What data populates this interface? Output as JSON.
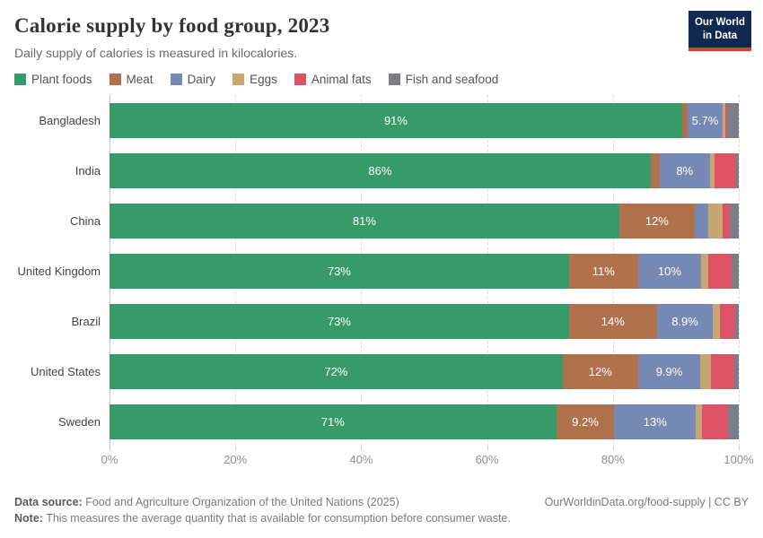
{
  "header": {
    "title": "Calorie supply by food group, 2023",
    "subtitle": "Daily supply of calories is measured in kilocalories."
  },
  "logo": {
    "line1": "Our World",
    "line2": "in Data",
    "bg_color": "#0F2A4E",
    "accent_color": "#DC3A32"
  },
  "chart_data": {
    "type": "bar",
    "stacked": true,
    "orientation": "horizontal",
    "grid": "vertical-dashed",
    "legend_position": "top",
    "xlim": [
      0,
      100
    ],
    "x_ticks": [
      "0%",
      "20%",
      "40%",
      "60%",
      "80%",
      "100%"
    ],
    "categories": [
      "Bangladesh",
      "India",
      "China",
      "United Kingdom",
      "Brazil",
      "United States",
      "Sweden"
    ],
    "series": [
      {
        "name": "Plant foods",
        "color": "#379A68",
        "values": [
          91,
          86,
          81,
          73,
          73,
          72,
          71
        ],
        "labels": [
          "91%",
          "86%",
          "81%",
          "73%",
          "73%",
          "72%",
          "71%"
        ]
      },
      {
        "name": "Meat",
        "color": "#B0714D",
        "values": [
          0.8,
          1.4,
          12,
          11,
          14,
          12,
          9.2
        ],
        "labels": [
          "",
          "",
          "12%",
          "11%",
          "14%",
          "12%",
          "9.2%"
        ]
      },
      {
        "name": "Dairy",
        "color": "#7589B4",
        "values": [
          5.7,
          8,
          2.1,
          10,
          8.9,
          9.9,
          13
        ],
        "labels": [
          "5.7%",
          "8%",
          "",
          "10%",
          "8.9%",
          "9.9%",
          "13%"
        ]
      },
      {
        "name": "Eggs",
        "color": "#C7A671",
        "values": [
          0.4,
          0.7,
          2.4,
          1.2,
          1.1,
          1.7,
          1.0
        ],
        "labels": [
          "",
          "",
          "",
          "",
          "",
          "",
          ""
        ]
      },
      {
        "name": "Animal fats",
        "color": "#DE5268",
        "values": [
          0.3,
          3.5,
          1.1,
          3.6,
          2.5,
          3.7,
          4.1
        ],
        "labels": [
          "",
          "",
          "",
          "",
          "",
          "",
          ""
        ]
      },
      {
        "name": "Fish and seafood",
        "color": "#787D87",
        "values": [
          1.8,
          0.4,
          1.4,
          1.2,
          0.5,
          0.7,
          1.7
        ],
        "labels": [
          "",
          "",
          "",
          "",
          "",
          "",
          ""
        ]
      }
    ]
  },
  "footer": {
    "datasource_label": "Data source:",
    "datasource_text": "Food and Agriculture Organization of the United Nations (2025)",
    "note_label": "Note:",
    "note_text": "This measures the average quantity that is available for consumption before consumer waste.",
    "link": "OurWorldinData.org/food-supply | CC BY"
  }
}
